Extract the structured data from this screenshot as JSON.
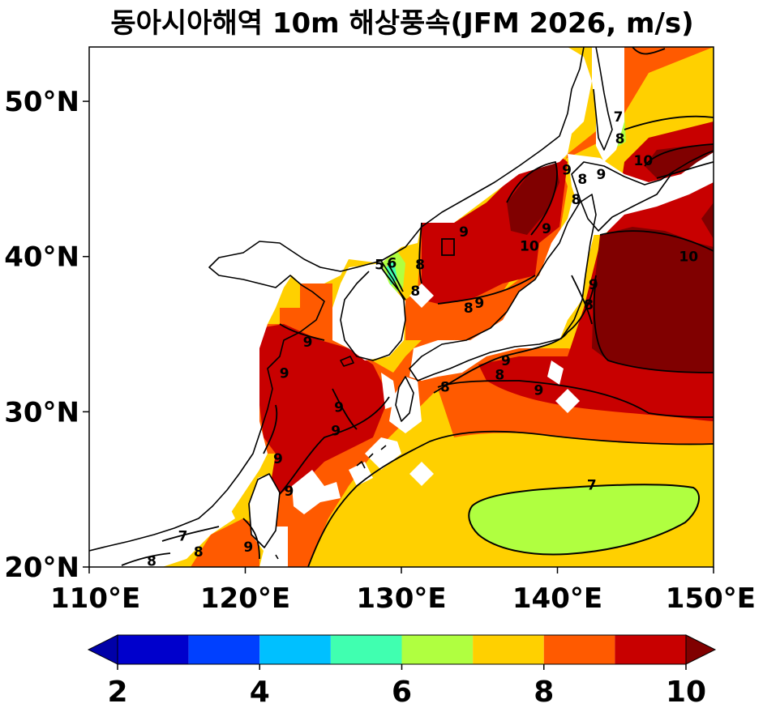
{
  "title": "동아시아해역 10m 해상풍속(JFM 2026, m/s)",
  "map": {
    "lon_range": [
      110,
      150
    ],
    "lat_range": [
      20,
      53.5
    ],
    "lon_ticks": [
      "110°E",
      "120°E",
      "130°E",
      "140°E",
      "150°E"
    ],
    "lat_ticks": [
      "20°N",
      "30°N",
      "40°N",
      "50°N"
    ],
    "lat_tick_values": [
      20,
      30,
      40,
      50
    ],
    "lon_tick_values": [
      110,
      120,
      130,
      140,
      150
    ]
  },
  "colorbar": {
    "levels": [
      2,
      3,
      4,
      5,
      6,
      7,
      8,
      9,
      10
    ],
    "colors": [
      "#0000a8",
      "#0000cc",
      "#0040ff",
      "#00c0ff",
      "#40ffb0",
      "#b0ff40",
      "#ffd000",
      "#ff5a00",
      "#c80000",
      "#800000"
    ],
    "tick_labels": [
      "2",
      "4",
      "6",
      "8",
      "10"
    ],
    "extend": "both"
  },
  "contour_labels": [
    {
      "text": "7",
      "lon": 142.2,
      "lat": 25.3
    },
    {
      "text": "8",
      "lon": 132.8,
      "lat": 31.6
    },
    {
      "text": "8",
      "lon": 134.3,
      "lat": 36.7
    },
    {
      "text": "8",
      "lon": 130.9,
      "lat": 37.8
    },
    {
      "text": "8",
      "lon": 131.2,
      "lat": 39.5
    },
    {
      "text": "8",
      "lon": 136.3,
      "lat": 32.4
    },
    {
      "text": "8",
      "lon": 142.0,
      "lat": 36.9
    },
    {
      "text": "8",
      "lon": 141.2,
      "lat": 43.7
    },
    {
      "text": "8",
      "lon": 144.0,
      "lat": 47.6
    },
    {
      "text": "8",
      "lon": 141.6,
      "lat": 45.0
    },
    {
      "text": "8",
      "lon": 114.0,
      "lat": 20.4
    },
    {
      "text": "8",
      "lon": 117.0,
      "lat": 21.0
    },
    {
      "text": "9",
      "lon": 138.8,
      "lat": 31.4
    },
    {
      "text": "9",
      "lon": 136.7,
      "lat": 33.3
    },
    {
      "text": "9",
      "lon": 135.0,
      "lat": 37.0
    },
    {
      "text": "9",
      "lon": 134.0,
      "lat": 41.6
    },
    {
      "text": "9",
      "lon": 139.3,
      "lat": 41.8
    },
    {
      "text": "9",
      "lon": 142.3,
      "lat": 38.2
    },
    {
      "text": "9",
      "lon": 140.6,
      "lat": 45.6
    },
    {
      "text": "9",
      "lon": 142.8,
      "lat": 45.3
    },
    {
      "text": "9",
      "lon": 124.0,
      "lat": 34.5
    },
    {
      "text": "9",
      "lon": 122.5,
      "lat": 32.5
    },
    {
      "text": "9",
      "lon": 126.0,
      "lat": 30.3
    },
    {
      "text": "9",
      "lon": 125.8,
      "lat": 28.8
    },
    {
      "text": "9",
      "lon": 122.1,
      "lat": 27.0
    },
    {
      "text": "9",
      "lon": 122.8,
      "lat": 24.9
    },
    {
      "text": "9",
      "lon": 120.2,
      "lat": 21.3
    },
    {
      "text": "10",
      "lon": 145.5,
      "lat": 46.2
    },
    {
      "text": "10",
      "lon": 138.2,
      "lat": 40.7
    },
    {
      "text": "10",
      "lon": 148.4,
      "lat": 40.0
    },
    {
      "text": "7",
      "lon": 143.9,
      "lat": 49.0
    },
    {
      "text": "7",
      "lon": 116.0,
      "lat": 22.0
    },
    {
      "text": "5",
      "lon": 128.6,
      "lat": 39.5
    },
    {
      "text": "6",
      "lon": 129.4,
      "lat": 39.6
    }
  ]
}
